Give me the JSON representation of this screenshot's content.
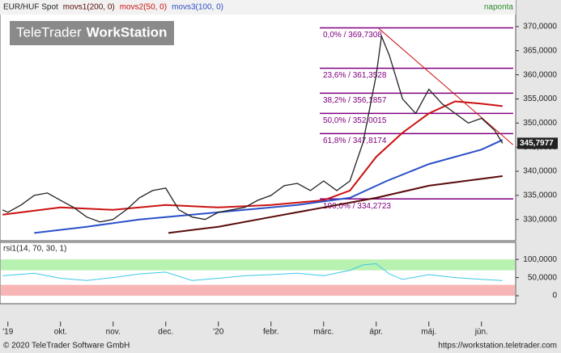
{
  "chart_data": [
    {
      "type": "line",
      "title": "EUR/HUF Spot",
      "period": "naponta",
      "watermark": [
        "TeleTrader",
        "WorkStation"
      ],
      "xlim": [
        -0.15,
        9.65
      ],
      "ylim": [
        325.6,
        372.5
      ],
      "yticks": [
        {
          "value": 330,
          "label": "330,0000"
        },
        {
          "value": 335,
          "label": "335,0000"
        },
        {
          "value": 340,
          "label": "340,0000"
        },
        {
          "value": 345,
          "label": "345,0000"
        },
        {
          "value": 350,
          "label": "350,0000"
        },
        {
          "value": 355,
          "label": "355,0000"
        },
        {
          "value": 360,
          "label": "360,0000"
        },
        {
          "value": 365,
          "label": "365,0000"
        },
        {
          "value": 370,
          "label": "370,0000"
        }
      ],
      "color": "#222222",
      "x": [
        -0.1,
        0,
        0.25,
        0.5,
        0.75,
        1,
        1.25,
        1.5,
        1.75,
        2,
        2.25,
        2.5,
        2.75,
        3,
        3.25,
        3.5,
        3.75,
        4,
        4.25,
        4.5,
        4.75,
        5,
        5.25,
        5.5,
        5.75,
        6,
        6.25,
        6.5,
        6.75,
        7,
        7.1,
        7.25,
        7.5,
        7.75,
        8,
        8.25,
        8.5,
        8.75,
        9,
        9.25,
        9.4
      ],
      "values": [
        332,
        331.5,
        333,
        335,
        335.5,
        334,
        332.5,
        330.5,
        329.5,
        330,
        332,
        334.5,
        336,
        336.5,
        332,
        330.5,
        330,
        331.5,
        332,
        332.5,
        334,
        335,
        337,
        337.5,
        336,
        338,
        336,
        338,
        346,
        360,
        368,
        364,
        355,
        352,
        357,
        354,
        352,
        350,
        351,
        348.5,
        345.8
      ],
      "series": [
        {
          "name": "movs1(200, 0)",
          "color": "#5a0a0a",
          "x": [
            3.05,
            4,
            5,
            6,
            7,
            8,
            9.4
          ],
          "values": [
            327.2,
            328.5,
            330.5,
            332.5,
            334.5,
            337,
            339
          ]
        },
        {
          "name": "movs2(50, 0)",
          "color": "#cc1111",
          "x": [
            -0.1,
            1,
            2,
            3,
            4,
            5,
            6,
            6.5,
            7,
            7.5,
            8,
            8.5,
            9,
            9.4
          ],
          "values": [
            331,
            332.5,
            332,
            333,
            332.5,
            333,
            334,
            336,
            343,
            348,
            352,
            354.5,
            354,
            353.5
          ]
        },
        {
          "name": "movs3(100, 0)",
          "color": "#2b50c8",
          "x": [
            0.5,
            1.5,
            2.5,
            3.5,
            4.5,
            5.5,
            6.5,
            7.2,
            8,
            9,
            9.4
          ],
          "values": [
            327.2,
            328.5,
            330,
            331,
            332,
            333,
            334.5,
            338,
            341.5,
            344.5,
            346.5
          ]
        }
      ],
      "levels": [
        {
          "value": 369.7308,
          "label": "0,0% / 369,7308"
        },
        {
          "value": 361.3528,
          "label": "23,6% / 361,3528"
        },
        {
          "value": 356.1857,
          "label": "38,2% / 356,1857"
        },
        {
          "value": 352.0015,
          "label": "50,0% / 352,0015"
        },
        {
          "value": 347.8174,
          "label": "61,8% / 347,8174"
        },
        {
          "value": 334.2723,
          "label": "100,0% / 334,2723"
        }
      ],
      "level_color": "#800080",
      "trendline": {
        "x": [
          7.05,
          9.6
        ],
        "y": [
          369.6,
          345.5
        ],
        "color": "#cc1111"
      },
      "last": {
        "value": 345.7977,
        "label": "345,7977"
      }
    },
    {
      "type": "line",
      "title": "rsi1(14, 70, 30, 1)",
      "color": "#3cc8e8",
      "xlim": [
        -0.15,
        9.65
      ],
      "ylim": [
        -22,
        147
      ],
      "yticks": [
        0,
        {
          "value": 50,
          "label": "50,0000"
        },
        {
          "value": 100,
          "label": "100,0000"
        }
      ],
      "bands": [
        {
          "from": 70,
          "to": 100,
          "color": "#b8f2b0"
        },
        {
          "from": 0,
          "to": 30,
          "color": "#f7b5b5"
        }
      ],
      "x": [
        -0.1,
        0.5,
        1,
        1.5,
        2,
        2.5,
        3,
        3.5,
        4,
        4.5,
        5,
        5.5,
        6,
        6.5,
        6.75,
        7,
        7.25,
        7.5,
        8,
        8.5,
        9,
        9.4
      ],
      "values": [
        55,
        62,
        48,
        42,
        50,
        60,
        65,
        42,
        48,
        55,
        58,
        62,
        55,
        70,
        85,
        88,
        60,
        45,
        58,
        50,
        45,
        42
      ],
      "xticks": [
        {
          "value": 0,
          "label": "'19"
        },
        {
          "value": 1,
          "label": "okt."
        },
        {
          "value": 2,
          "label": "nov."
        },
        {
          "value": 3,
          "label": "dec."
        },
        {
          "value": 4,
          "label": "'20"
        },
        {
          "value": 5,
          "label": "febr."
        },
        {
          "value": 6,
          "label": "márc."
        },
        {
          "value": 7,
          "label": "ápr."
        },
        {
          "value": 8,
          "label": "máj."
        },
        {
          "value": 9,
          "label": "jún."
        }
      ]
    }
  ],
  "footer": {
    "copyright": "© 2020 TeleTrader Software GmbH",
    "url": "https://workstation.teletrader.com"
  }
}
